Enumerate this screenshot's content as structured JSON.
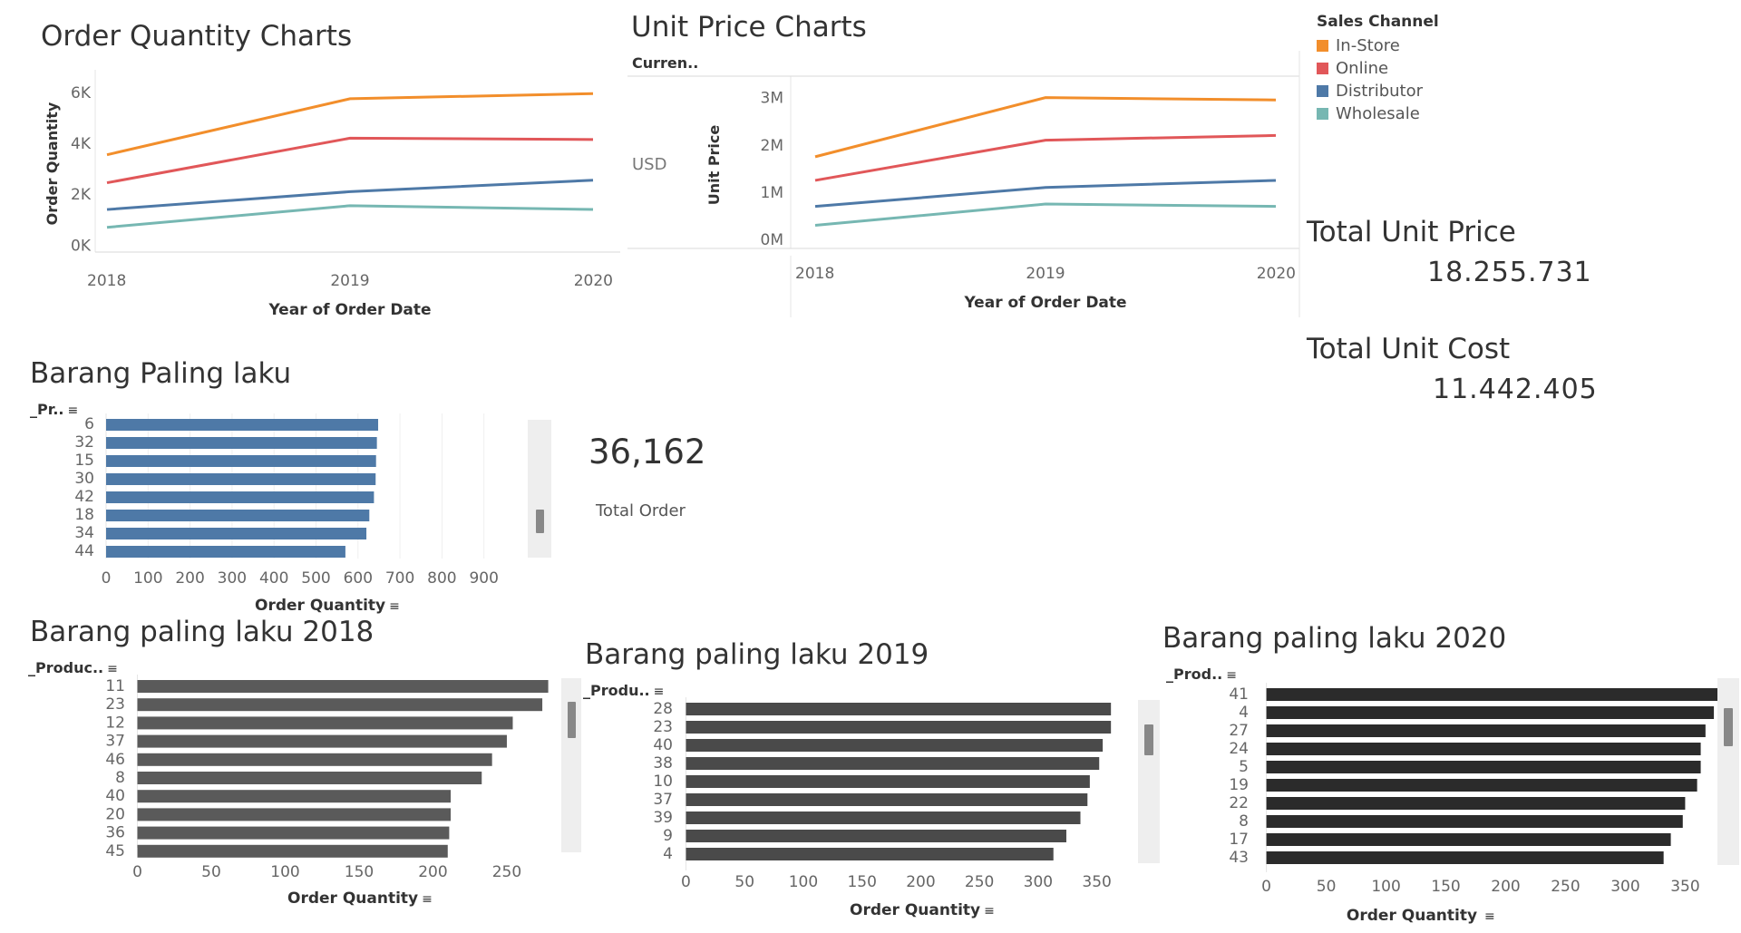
{
  "titles": {
    "order_quantity": "Order Quantity Charts",
    "unit_price": "Unit Price Charts",
    "top_products": "Barang Paling laku",
    "top_2018": "Barang paling laku 2018",
    "top_2019": "Barang paling laku 2019",
    "top_2020": "Barang paling laku 2020"
  },
  "legend": {
    "title": "Sales Channel",
    "items": [
      {
        "label": "In-Store",
        "color": "#F28E2B"
      },
      {
        "label": "Online",
        "color": "#E15759"
      },
      {
        "label": "Distributor",
        "color": "#4E79A7"
      },
      {
        "label": "Wholesale",
        "color": "#76B7B2"
      }
    ]
  },
  "kpis": {
    "total_order_value": "36,162",
    "total_order_label": "Total Order",
    "total_unit_price_label": "Total Unit Price",
    "total_unit_price_value": "18.255.731",
    "total_unit_cost_label": "Total Unit Cost",
    "total_unit_cost_value": "11.442.405"
  },
  "pills": {
    "currency": "Curren..",
    "currency_value": "USD",
    "top_products_dim": "_Pr..",
    "top_2018_dim": "_Produc..",
    "top_2019_dim": "_Produ..",
    "top_2020_dim": "_Prod.."
  },
  "sort_glyph": "≡",
  "chart_data": [
    {
      "type": "line",
      "title": "Order Quantity Charts",
      "xlabel": "Year of Order Date",
      "ylabel": "Order Quantity",
      "x": [
        "2018",
        "2019",
        "2020"
      ],
      "yticks": [
        0,
        2000,
        4000,
        6000
      ],
      "ytick_labels": [
        "0K",
        "2K",
        "4K",
        "6K"
      ],
      "ylim": [
        -200,
        6600
      ],
      "series": [
        {
          "name": "In-Store",
          "color": "#F28E2B",
          "values": [
            3550,
            5750,
            5950
          ]
        },
        {
          "name": "Online",
          "color": "#E15759",
          "values": [
            2450,
            4200,
            4150
          ]
        },
        {
          "name": "Distributor",
          "color": "#4E79A7",
          "values": [
            1400,
            2100,
            2550
          ]
        },
        {
          "name": "Wholesale",
          "color": "#76B7B2",
          "values": [
            700,
            1550,
            1400
          ]
        }
      ]
    },
    {
      "type": "line",
      "title": "Unit Price Charts",
      "xlabel": "Year of Order Date",
      "ylabel": "Unit Price",
      "x": [
        "2018",
        "2019",
        "2020"
      ],
      "yticks": [
        0,
        1000000,
        2000000,
        3000000
      ],
      "ytick_labels": [
        "0M",
        "1M",
        "2M",
        "3M"
      ],
      "ylim": [
        -150000,
        3300000
      ],
      "series": [
        {
          "name": "In-Store",
          "color": "#F28E2B",
          "values": [
            1750000,
            3000000,
            2950000
          ]
        },
        {
          "name": "Online",
          "color": "#E15759",
          "values": [
            1250000,
            2100000,
            2200000
          ]
        },
        {
          "name": "Distributor",
          "color": "#4E79A7",
          "values": [
            700000,
            1100000,
            1250000
          ]
        },
        {
          "name": "Wholesale",
          "color": "#76B7B2",
          "values": [
            300000,
            750000,
            700000
          ]
        }
      ]
    },
    {
      "type": "bar",
      "title": "Barang Paling laku",
      "xlabel": "Order Quantity",
      "categories": [
        "6",
        "32",
        "15",
        "30",
        "42",
        "18",
        "34",
        "44"
      ],
      "values": [
        648,
        645,
        643,
        642,
        638,
        627,
        620,
        570
      ],
      "xticks": [
        0,
        100,
        200,
        300,
        400,
        500,
        600,
        700,
        800,
        900
      ],
      "xlim": [
        0,
        1000
      ],
      "color": "#4E79A7"
    },
    {
      "type": "bar",
      "title": "Barang paling laku 2018",
      "xlabel": "Order Quantity",
      "categories": [
        "11",
        "23",
        "12",
        "37",
        "46",
        "8",
        "40",
        "20",
        "36",
        "45"
      ],
      "values": [
        278,
        274,
        254,
        250,
        240,
        233,
        212,
        212,
        211,
        210
      ],
      "xticks": [
        0,
        50,
        100,
        150,
        200,
        250
      ],
      "xlim": [
        -4,
        285
      ],
      "color": "#5a5a5a"
    },
    {
      "type": "bar",
      "title": "Barang paling laku 2019",
      "xlabel": "Order Quantity",
      "categories": [
        "28",
        "23",
        "40",
        "38",
        "10",
        "37",
        "39",
        "9",
        "4"
      ],
      "values": [
        362,
        362,
        355,
        352,
        344,
        342,
        336,
        324,
        313
      ],
      "xticks": [
        0,
        50,
        100,
        150,
        200,
        250,
        300,
        350
      ],
      "xlim": [
        -5,
        375
      ],
      "color": "#4a4a4a"
    },
    {
      "type": "bar",
      "title": "Barang paling laku 2020",
      "xlabel": "Order Quantity",
      "categories": [
        "41",
        "4",
        "27",
        "24",
        "5",
        "19",
        "22",
        "8",
        "17",
        "43"
      ],
      "values": [
        377,
        374,
        367,
        363,
        363,
        360,
        350,
        348,
        338,
        332
      ],
      "xticks": [
        0,
        50,
        100,
        150,
        200,
        250,
        300,
        350
      ],
      "xlim": [
        -5,
        380
      ],
      "color": "#2b2b2b"
    }
  ]
}
